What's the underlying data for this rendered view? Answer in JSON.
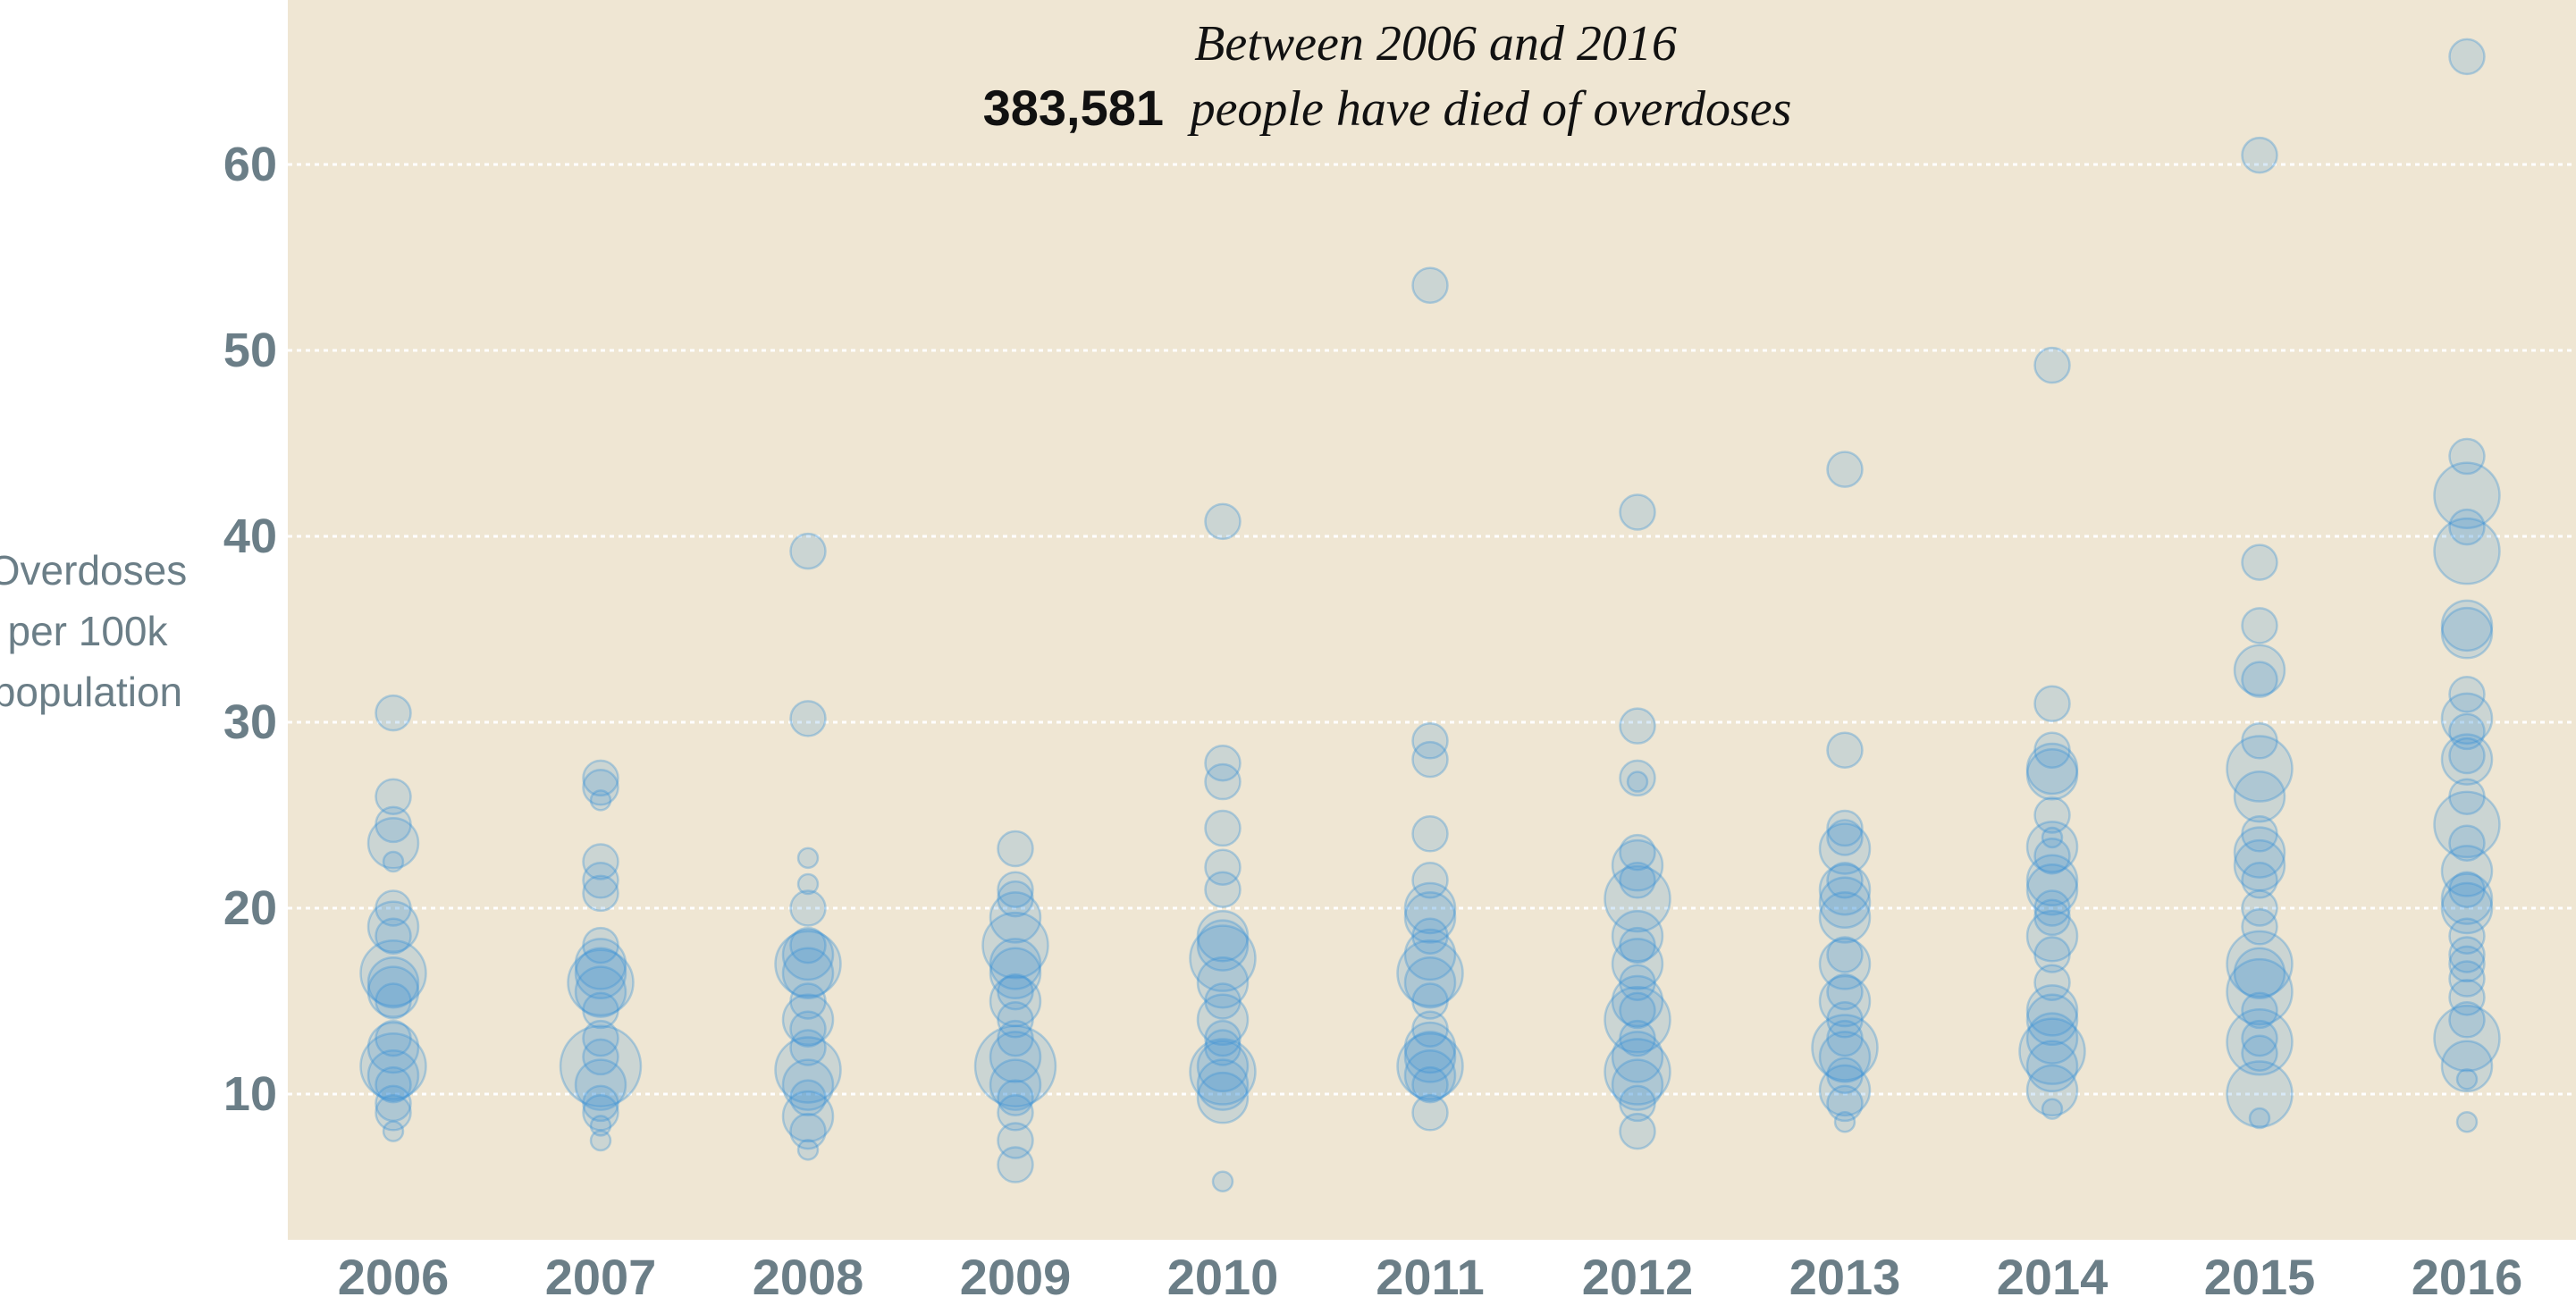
{
  "chart_data": {
    "type": "scatter",
    "title_line1": "Between 2006 and 2016",
    "title_number": "383,581",
    "title_line2": "people have died of overdoses",
    "ylabel_lines": [
      "Overdoses",
      "per 100k",
      "population"
    ],
    "x_categories": [
      "2006",
      "2007",
      "2008",
      "2009",
      "2010",
      "2011",
      "2012",
      "2013",
      "2014",
      "2015",
      "2016"
    ],
    "y_ticks": [
      10,
      20,
      30,
      40,
      50,
      60
    ],
    "ylim": [
      3,
      69
    ],
    "grid": true,
    "point_color": "#3a93d6",
    "background_color": "#efe6d3",
    "series": [
      {
        "name": "2006",
        "points": [
          [
            30.5,
            2
          ],
          [
            26,
            2
          ],
          [
            24.5,
            2
          ],
          [
            23.5,
            3
          ],
          [
            22.5,
            1
          ],
          [
            20,
            2
          ],
          [
            19,
            3
          ],
          [
            18.5,
            2
          ],
          [
            16.5,
            4
          ],
          [
            16,
            3
          ],
          [
            15.5,
            3
          ],
          [
            15,
            2
          ],
          [
            13,
            2
          ],
          [
            12.5,
            3
          ],
          [
            11.5,
            4
          ],
          [
            11,
            3
          ],
          [
            10.5,
            2
          ],
          [
            9.5,
            2
          ],
          [
            9,
            2
          ],
          [
            8,
            1
          ]
        ]
      },
      {
        "name": "2007",
        "points": [
          [
            27,
            2
          ],
          [
            26.5,
            2
          ],
          [
            25.8,
            1
          ],
          [
            22.5,
            2
          ],
          [
            21.5,
            2
          ],
          [
            20.8,
            2
          ],
          [
            18,
            2
          ],
          [
            17,
            3
          ],
          [
            16.5,
            3
          ],
          [
            16,
            4
          ],
          [
            15.5,
            3
          ],
          [
            14.5,
            2
          ],
          [
            13,
            2
          ],
          [
            12,
            2
          ],
          [
            11.5,
            5
          ],
          [
            10.5,
            3
          ],
          [
            9.5,
            2
          ],
          [
            9,
            2
          ],
          [
            8.3,
            1
          ],
          [
            7.5,
            1
          ]
        ]
      },
      {
        "name": "2008",
        "points": [
          [
            39.2,
            2
          ],
          [
            30.2,
            2
          ],
          [
            22.7,
            1
          ],
          [
            21.3,
            1
          ],
          [
            20,
            2
          ],
          [
            18,
            2
          ],
          [
            17.5,
            3
          ],
          [
            17,
            4
          ],
          [
            16.5,
            3
          ],
          [
            15,
            2
          ],
          [
            14,
            3
          ],
          [
            13.5,
            2
          ],
          [
            12.5,
            2
          ],
          [
            11.3,
            4
          ],
          [
            10.5,
            3
          ],
          [
            9.8,
            2
          ],
          [
            8.8,
            3
          ],
          [
            8,
            2
          ],
          [
            7,
            1
          ]
        ]
      },
      {
        "name": "2009",
        "points": [
          [
            23.2,
            2
          ],
          [
            21,
            2
          ],
          [
            20.5,
            2
          ],
          [
            19.5,
            3
          ],
          [
            18,
            4
          ],
          [
            17,
            3
          ],
          [
            16.5,
            3
          ],
          [
            15.5,
            2
          ],
          [
            15,
            3
          ],
          [
            14,
            2
          ],
          [
            13,
            2
          ],
          [
            12,
            3
          ],
          [
            11.5,
            5
          ],
          [
            10.5,
            3
          ],
          [
            9.8,
            2
          ],
          [
            9,
            2
          ],
          [
            7.5,
            2
          ],
          [
            6.2,
            2
          ]
        ]
      },
      {
        "name": "2010",
        "points": [
          [
            40.8,
            2
          ],
          [
            27.8,
            2
          ],
          [
            26.8,
            2
          ],
          [
            24.3,
            2
          ],
          [
            22.2,
            2
          ],
          [
            21,
            2
          ],
          [
            18.5,
            3
          ],
          [
            18,
            3
          ],
          [
            17.3,
            4
          ],
          [
            16,
            3
          ],
          [
            15,
            2
          ],
          [
            14,
            3
          ],
          [
            13,
            2
          ],
          [
            12.5,
            2
          ],
          [
            11.5,
            3
          ],
          [
            11.2,
            4
          ],
          [
            10.5,
            3
          ],
          [
            9.8,
            3
          ],
          [
            5.3,
            1
          ]
        ]
      },
      {
        "name": "2011",
        "points": [
          [
            53.5,
            2
          ],
          [
            29,
            2
          ],
          [
            28,
            2
          ],
          [
            24,
            2
          ],
          [
            21.5,
            2
          ],
          [
            20,
            3
          ],
          [
            19.5,
            3
          ],
          [
            18.5,
            2
          ],
          [
            17.5,
            3
          ],
          [
            16.5,
            4
          ],
          [
            16,
            3
          ],
          [
            15,
            2
          ],
          [
            13.5,
            2
          ],
          [
            12.5,
            3
          ],
          [
            12,
            3
          ],
          [
            11.5,
            4
          ],
          [
            11,
            3
          ],
          [
            10.5,
            2
          ],
          [
            9,
            2
          ]
        ]
      },
      {
        "name": "2012",
        "points": [
          [
            41.3,
            2
          ],
          [
            29.8,
            2
          ],
          [
            27,
            2
          ],
          [
            26.8,
            1
          ],
          [
            23,
            2
          ],
          [
            22.3,
            3
          ],
          [
            21.5,
            2
          ],
          [
            20.5,
            4
          ],
          [
            18.5,
            3
          ],
          [
            18,
            2
          ],
          [
            17,
            3
          ],
          [
            16,
            2
          ],
          [
            15,
            3
          ],
          [
            14.5,
            2
          ],
          [
            14,
            4
          ],
          [
            13,
            2
          ],
          [
            12,
            3
          ],
          [
            11.2,
            4
          ],
          [
            10.5,
            3
          ],
          [
            9.5,
            2
          ],
          [
            8,
            2
          ]
        ]
      },
      {
        "name": "2013",
        "points": [
          [
            43.6,
            2
          ],
          [
            28.5,
            2
          ],
          [
            24.3,
            2
          ],
          [
            23.8,
            2
          ],
          [
            23.2,
            3
          ],
          [
            21.5,
            2
          ],
          [
            21,
            3
          ],
          [
            20.3,
            3
          ],
          [
            19.5,
            3
          ],
          [
            17.5,
            2
          ],
          [
            17,
            3
          ],
          [
            15.5,
            2
          ],
          [
            15,
            3
          ],
          [
            14,
            2
          ],
          [
            13,
            2
          ],
          [
            12.5,
            4
          ],
          [
            12,
            3
          ],
          [
            11,
            2
          ],
          [
            10.2,
            3
          ],
          [
            9.5,
            2
          ],
          [
            8.5,
            1
          ]
        ]
      },
      {
        "name": "2014",
        "points": [
          [
            49.2,
            2
          ],
          [
            31,
            2
          ],
          [
            28.5,
            2
          ],
          [
            27.5,
            3
          ],
          [
            27.2,
            3
          ],
          [
            25,
            2
          ],
          [
            23.8,
            1
          ],
          [
            23.3,
            3
          ],
          [
            22.8,
            2
          ],
          [
            21.5,
            3
          ],
          [
            21,
            3
          ],
          [
            20,
            2
          ],
          [
            19.5,
            2
          ],
          [
            18.5,
            3
          ],
          [
            17.5,
            2
          ],
          [
            16,
            2
          ],
          [
            14.5,
            3
          ],
          [
            14,
            3
          ],
          [
            13,
            3
          ],
          [
            12.3,
            4
          ],
          [
            11.5,
            3
          ],
          [
            10.2,
            3
          ],
          [
            9.2,
            1
          ]
        ]
      },
      {
        "name": "2015",
        "points": [
          [
            60.5,
            2
          ],
          [
            38.6,
            2
          ],
          [
            35.2,
            2
          ],
          [
            32.8,
            3
          ],
          [
            32.3,
            2
          ],
          [
            29,
            2
          ],
          [
            27.5,
            4
          ],
          [
            26,
            3
          ],
          [
            24,
            2
          ],
          [
            23,
            3
          ],
          [
            22.3,
            3
          ],
          [
            21.5,
            2
          ],
          [
            20,
            2
          ],
          [
            19,
            2
          ],
          [
            17,
            4
          ],
          [
            16.5,
            3
          ],
          [
            15.5,
            4
          ],
          [
            14.5,
            2
          ],
          [
            13,
            2
          ],
          [
            12.8,
            4
          ],
          [
            12.2,
            2
          ],
          [
            10,
            4
          ],
          [
            8.7,
            1
          ]
        ]
      },
      {
        "name": "2016",
        "points": [
          [
            65.8,
            2
          ],
          [
            44.3,
            2
          ],
          [
            42.2,
            4
          ],
          [
            40.5,
            2
          ],
          [
            39.2,
            4
          ],
          [
            35.2,
            3
          ],
          [
            34.8,
            3
          ],
          [
            31.5,
            2
          ],
          [
            30.2,
            3
          ],
          [
            29.5,
            2
          ],
          [
            28.2,
            2
          ],
          [
            28,
            3
          ],
          [
            26,
            2
          ],
          [
            24.5,
            4
          ],
          [
            23.5,
            2
          ],
          [
            22,
            3
          ],
          [
            21,
            2
          ],
          [
            20.5,
            3
          ],
          [
            20,
            3
          ],
          [
            18.5,
            2
          ],
          [
            17.5,
            2
          ],
          [
            17,
            2
          ],
          [
            16.2,
            2
          ],
          [
            15.2,
            2
          ],
          [
            14,
            2
          ],
          [
            13,
            4
          ],
          [
            11.5,
            3
          ],
          [
            10.8,
            1
          ],
          [
            8.5,
            1
          ]
        ]
      }
    ]
  }
}
